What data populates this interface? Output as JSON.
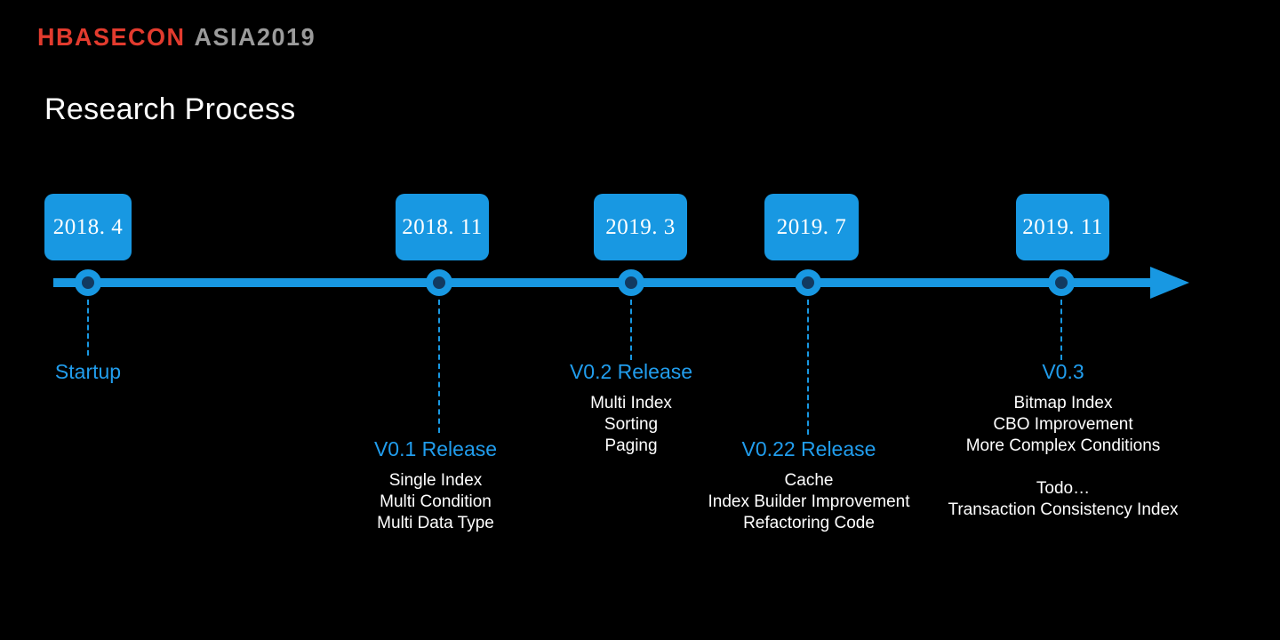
{
  "brand": {
    "part1": "HBASECON",
    "part2": "ASIA2019"
  },
  "page_title": "Research Process",
  "colors": {
    "accent": "#1898e2",
    "label_blue": "#219ded",
    "node_core": "#123a60",
    "brand_red": "#e23b2e",
    "brand_gray": "#9b9b9b",
    "background": "#000000",
    "text": "#ffffff"
  },
  "timeline": {
    "milestones": [
      {
        "date": "2018. 4",
        "label": "Startup",
        "items": []
      },
      {
        "date": "2018. 11",
        "label": "V0.1 Release",
        "items": [
          "Single Index",
          "Multi Condition",
          "Multi Data Type"
        ]
      },
      {
        "date": "2019. 3",
        "label": "V0.2 Release",
        "items": [
          "Multi Index",
          "Sorting",
          "Paging"
        ]
      },
      {
        "date": "2019. 7",
        "label": "V0.22 Release",
        "items": [
          "Cache",
          "Index Builder Improvement",
          "Refactoring Code"
        ]
      },
      {
        "date": "2019. 11",
        "label": "V0.3",
        "items": [
          "Bitmap Index",
          "CBO Improvement",
          "More Complex Conditions"
        ],
        "extra_items": [
          "Todo…",
          "Transaction Consistency Index"
        ]
      }
    ]
  }
}
